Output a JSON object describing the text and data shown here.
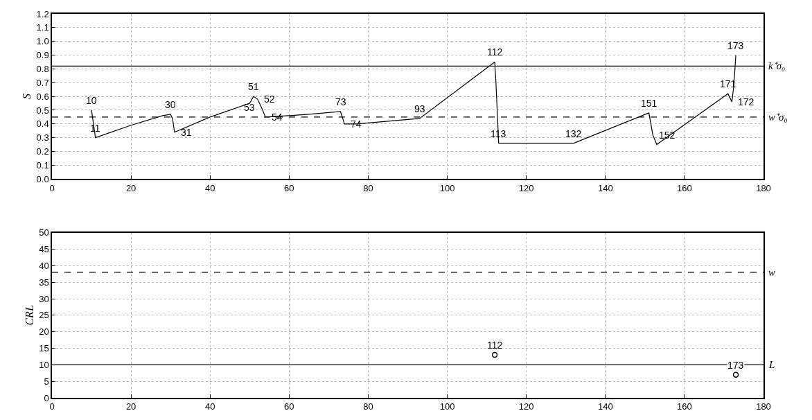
{
  "chart_data": [
    {
      "type": "line",
      "ylabel": "S",
      "color": "#000000",
      "line_style": "solid",
      "marker": "none",
      "grid": true,
      "legend": false,
      "x": [
        10,
        10.5,
        11,
        20,
        28,
        30,
        30.5,
        31,
        40,
        50,
        51,
        52,
        53,
        54,
        60,
        65,
        73,
        74,
        77,
        85,
        93,
        112,
        112.3,
        113,
        132,
        151,
        152,
        153,
        171,
        172,
        172.5,
        173
      ],
      "values": [
        0.5,
        0.4,
        0.3,
        0.39,
        0.46,
        0.47,
        0.44,
        0.34,
        0.45,
        0.55,
        0.6,
        0.58,
        0.52,
        0.45,
        0.46,
        0.47,
        0.49,
        0.4,
        0.4,
        0.42,
        0.44,
        0.85,
        0.71,
        0.26,
        0.26,
        0.48,
        0.32,
        0.25,
        0.62,
        0.56,
        0.68,
        0.9
      ],
      "xlim": [
        0,
        180
      ],
      "xticks": [
        0,
        20,
        40,
        60,
        80,
        100,
        120,
        140,
        160,
        180
      ],
      "ylim": [
        0,
        1.2
      ],
      "yticks": [
        {
          "value": 0,
          "label": "0.0"
        },
        {
          "value": 0.1,
          "label": "0.1"
        },
        {
          "value": 0.2,
          "label": "0.2"
        },
        {
          "value": 0.3,
          "label": "0.3"
        },
        {
          "value": 0.4,
          "label": "0.4"
        },
        {
          "value": 0.5,
          "label": "0.5"
        },
        {
          "value": 0.6,
          "label": "0.6"
        },
        {
          "value": 0.7,
          "label": "0.7"
        },
        {
          "value": 0.8,
          "label": "0.8"
        },
        {
          "value": 0.9,
          "label": "0.9"
        },
        {
          "value": 1,
          "label": "1.0"
        },
        {
          "value": 1.1,
          "label": "1.1"
        },
        {
          "value": 1.2,
          "label": "1.2"
        }
      ],
      "ref_lines": [
        {
          "axis": "y",
          "value": 0.82,
          "label": "k⁺σ₀",
          "line_style": "solid"
        },
        {
          "axis": "y",
          "value": 0.45,
          "label": "w⁺σ₀",
          "line_style": "dashed"
        }
      ],
      "annotations": [
        {
          "text": "10",
          "x": 10,
          "y": 0.5
        },
        {
          "text": "11",
          "x": 11,
          "y": 0.3
        },
        {
          "text": "30",
          "x": 30,
          "y": 0.47
        },
        {
          "text": "31",
          "x": 31,
          "y": 0.34
        },
        {
          "text": "51",
          "x": 51,
          "y": 0.6
        },
        {
          "text": "52",
          "x": 52,
          "y": 0.58
        },
        {
          "text": "53",
          "x": 53,
          "y": 0.52
        },
        {
          "text": "54",
          "x": 54,
          "y": 0.45
        },
        {
          "text": "73",
          "x": 73,
          "y": 0.49
        },
        {
          "text": "74",
          "x": 74,
          "y": 0.4
        },
        {
          "text": "93",
          "x": 93,
          "y": 0.44
        },
        {
          "text": "112",
          "x": 112,
          "y": 0.85
        },
        {
          "text": "113",
          "x": 113,
          "y": 0.26
        },
        {
          "text": "132",
          "x": 132,
          "y": 0.26
        },
        {
          "text": "151",
          "x": 151,
          "y": 0.48
        },
        {
          "text": "152",
          "x": 152,
          "y": 0.32
        },
        {
          "text": "171",
          "x": 171,
          "y": 0.62
        },
        {
          "text": "172",
          "x": 172,
          "y": 0.56
        },
        {
          "text": "173",
          "x": 173,
          "y": 0.9
        }
      ]
    },
    {
      "type": "scatter",
      "ylabel": "CRL",
      "color": "#000000",
      "marker": "circle",
      "grid": true,
      "legend": false,
      "x": [
        112,
        173
      ],
      "values": [
        13,
        7
      ],
      "xlim": [
        0,
        180
      ],
      "xticks": [
        0,
        20,
        40,
        60,
        80,
        100,
        120,
        140,
        160,
        180
      ],
      "ylim": [
        0,
        50
      ],
      "yticks": [
        0,
        5,
        10,
        15,
        20,
        25,
        30,
        35,
        40,
        45,
        50
      ],
      "ref_lines": [
        {
          "axis": "y",
          "value": 38,
          "label": "w",
          "line_style": "dashed"
        },
        {
          "axis": "y",
          "value": 10,
          "label": "L",
          "line_style": "solid"
        }
      ],
      "annotations": [
        {
          "text": "112",
          "x": 112,
          "y": 13
        },
        {
          "text": "173",
          "x": 173,
          "y": 7
        }
      ]
    }
  ]
}
